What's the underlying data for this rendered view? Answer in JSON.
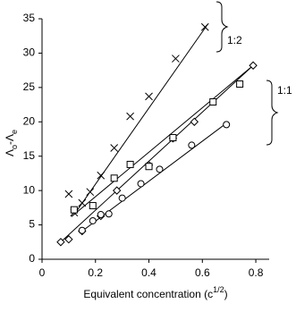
{
  "chart_data": {
    "type": "scatter",
    "x_label": [
      {
        "t": "Equivalent concentration (c"
      },
      {
        "t": "1/2",
        "sup": true
      },
      {
        "t": ")"
      }
    ],
    "y_label": [
      {
        "t": "Λ"
      },
      {
        "t": "o",
        "sub": true
      },
      {
        "t": "-Λ"
      },
      {
        "t": "e",
        "sub": true
      }
    ],
    "xlim": [
      0,
      0.85
    ],
    "ylim": [
      0,
      35
    ],
    "xticks": [
      0,
      0.2,
      0.4,
      0.6,
      0.8
    ],
    "yticks": [
      0,
      5,
      10,
      15,
      20,
      25,
      30,
      35
    ],
    "annotations": [
      "1:2",
      "1:1"
    ],
    "series": [
      {
        "marker": "cross",
        "color": "#000",
        "x": [
          0.1,
          0.12,
          0.15,
          0.18,
          0.22,
          0.27,
          0.33,
          0.4,
          0.5,
          0.61
        ],
        "values": [
          9.5,
          6.8,
          8.2,
          9.8,
          12.2,
          16.2,
          20.8,
          23.7,
          29.2,
          33.8
        ]
      },
      {
        "marker": "diamond",
        "color": "#000",
        "x": [
          0.07,
          0.1,
          0.15,
          0.22,
          0.28,
          0.4,
          0.49,
          0.57,
          0.79
        ],
        "values": [
          2.5,
          2.9,
          4.1,
          6.3,
          10,
          13.7,
          17.6,
          20,
          28.2
        ]
      },
      {
        "marker": "square",
        "color": "#000",
        "x": [
          0.12,
          0.19,
          0.27,
          0.33,
          0.4,
          0.49,
          0.64,
          0.74
        ],
        "values": [
          7.2,
          7.8,
          11.8,
          13.8,
          13.5,
          17.7,
          22.9,
          25.5
        ]
      },
      {
        "marker": "circle",
        "color": "#000",
        "x": [
          0.15,
          0.19,
          0.22,
          0.25,
          0.3,
          0.37,
          0.44,
          0.56,
          0.69
        ],
        "values": [
          4.2,
          5.6,
          6.5,
          6.6,
          8.9,
          11,
          13.1,
          16.6,
          19.6
        ]
      },
      {
        "marker": "line",
        "color": "#000",
        "x": [
          0.12,
          0.62
        ],
        "values": [
          6.5,
          34.2
        ]
      },
      {
        "marker": "line",
        "color": "#000",
        "x": [
          0.07,
          0.79
        ],
        "values": [
          2.5,
          28.2
        ]
      },
      {
        "marker": "line",
        "color": "#000",
        "x": [
          0.11,
          0.79
        ],
        "values": [
          6.2,
          28.2
        ]
      },
      {
        "marker": "line",
        "color": "#000",
        "x": [
          0.14,
          0.69
        ],
        "values": [
          3.8,
          19.8
        ]
      }
    ]
  }
}
